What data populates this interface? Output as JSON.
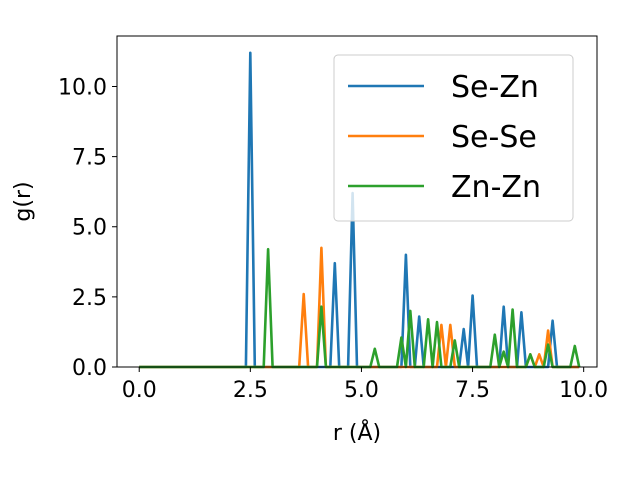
{
  "chart_data": {
    "type": "line",
    "title": "",
    "xlabel": "r (Å)",
    "ylabel": "g(r)",
    "xlim": [
      -0.5,
      10.3
    ],
    "ylim": [
      0,
      11.8
    ],
    "xticks": [
      0.0,
      2.5,
      5.0,
      7.5,
      10.0
    ],
    "xtick_labels": [
      "0.0",
      "2.5",
      "5.0",
      "7.5",
      "10.0"
    ],
    "yticks": [
      0.0,
      2.5,
      5.0,
      7.5,
      10.0
    ],
    "ytick_labels": [
      "0.0",
      "2.5",
      "5.0",
      "7.5",
      "10.0"
    ],
    "grid": false,
    "legend_position": "top-right",
    "series": [
      {
        "name": "Se-Zn",
        "color": "#1f77b4",
        "points": [
          [
            0,
            0
          ],
          [
            2.4,
            0
          ],
          [
            2.5,
            11.2
          ],
          [
            2.6,
            0
          ],
          [
            4.3,
            0
          ],
          [
            4.4,
            3.7
          ],
          [
            4.5,
            0
          ],
          [
            4.7,
            0
          ],
          [
            4.8,
            6.2
          ],
          [
            4.9,
            0
          ],
          [
            5.9,
            0
          ],
          [
            6.0,
            4.0
          ],
          [
            6.1,
            0
          ],
          [
            6.2,
            0
          ],
          [
            6.3,
            1.8
          ],
          [
            6.4,
            0
          ],
          [
            7.2,
            0
          ],
          [
            7.3,
            1.35
          ],
          [
            7.4,
            0
          ],
          [
            7.5,
            2.55
          ],
          [
            7.6,
            0
          ],
          [
            8.1,
            0
          ],
          [
            8.2,
            2.15
          ],
          [
            8.3,
            0
          ],
          [
            8.5,
            0
          ],
          [
            8.6,
            1.95
          ],
          [
            8.7,
            0
          ],
          [
            9.2,
            0
          ],
          [
            9.3,
            1.65
          ],
          [
            9.4,
            0
          ],
          [
            9.9,
            0
          ]
        ]
      },
      {
        "name": "Se-Se",
        "color": "#ff7f0e",
        "points": [
          [
            0,
            0
          ],
          [
            3.6,
            0
          ],
          [
            3.7,
            2.6
          ],
          [
            3.8,
            0
          ],
          [
            4.0,
            0
          ],
          [
            4.1,
            4.25
          ],
          [
            4.2,
            0
          ],
          [
            6.7,
            0
          ],
          [
            6.8,
            1.5
          ],
          [
            6.9,
            0
          ],
          [
            7.0,
            1.5
          ],
          [
            7.1,
            0
          ],
          [
            8.7,
            0
          ],
          [
            8.8,
            0.45
          ],
          [
            8.9,
            0
          ],
          [
            9.0,
            0.45
          ],
          [
            9.1,
            0
          ],
          [
            9.2,
            1.3
          ],
          [
            9.3,
            0
          ],
          [
            9.9,
            0
          ]
        ]
      },
      {
        "name": "Zn-Zn",
        "color": "#2ca02c",
        "points": [
          [
            0,
            0
          ],
          [
            2.8,
            0
          ],
          [
            2.9,
            4.2
          ],
          [
            3.0,
            0
          ],
          [
            4.0,
            0
          ],
          [
            4.1,
            2.15
          ],
          [
            4.2,
            0
          ],
          [
            5.2,
            0
          ],
          [
            5.3,
            0.65
          ],
          [
            5.4,
            0
          ],
          [
            5.8,
            0
          ],
          [
            5.9,
            1.05
          ],
          [
            6.0,
            0
          ],
          [
            6.1,
            2.0
          ],
          [
            6.2,
            0
          ],
          [
            6.4,
            0
          ],
          [
            6.5,
            1.7
          ],
          [
            6.6,
            0
          ],
          [
            6.7,
            1.6
          ],
          [
            6.8,
            0
          ],
          [
            7.0,
            0
          ],
          [
            7.1,
            0.95
          ],
          [
            7.2,
            0
          ],
          [
            7.9,
            0
          ],
          [
            8.0,
            1.15
          ],
          [
            8.1,
            0
          ],
          [
            8.2,
            0.55
          ],
          [
            8.3,
            0
          ],
          [
            8.4,
            2.05
          ],
          [
            8.5,
            0
          ],
          [
            8.7,
            0
          ],
          [
            8.8,
            0.45
          ],
          [
            8.9,
            0
          ],
          [
            9.1,
            0
          ],
          [
            9.2,
            0.8
          ],
          [
            9.3,
            0
          ],
          [
            9.7,
            0
          ],
          [
            9.8,
            0.75
          ],
          [
            9.9,
            0
          ]
        ]
      }
    ]
  }
}
